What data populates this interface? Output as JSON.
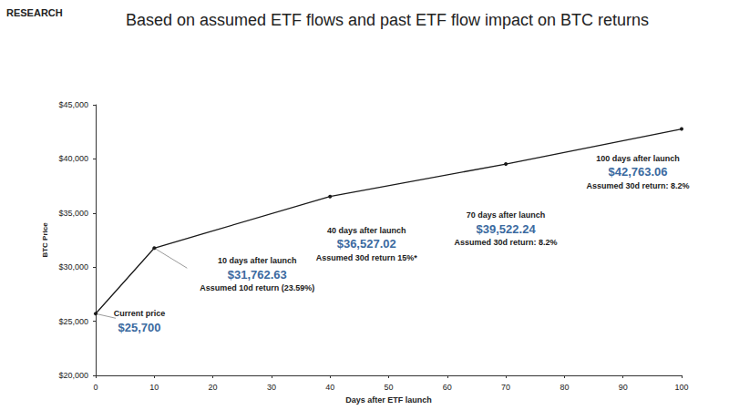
{
  "chart_data": {
    "type": "line",
    "title": "Based on assumed ETF flows and past ETF flow impact on BTC returns",
    "brand": "RESEARCH",
    "x_label": "Days after ETF launch",
    "y_label": "BTC Price",
    "x": [
      0,
      10,
      40,
      70,
      100
    ],
    "values": [
      25700,
      31762.63,
      36527.02,
      39522.24,
      42763.06
    ],
    "value_labels": [
      "$25,700",
      "$31,762.63",
      "$36,527.02",
      "$39,522.24",
      "$42,763.06"
    ],
    "annotations": [
      {
        "heading": "Current price",
        "note": null
      },
      {
        "heading": "10 days after launch",
        "note": "Assumed 10d return (23.59%)"
      },
      {
        "heading": "40 days after launch",
        "note": "Assumed 30d return 15%*"
      },
      {
        "heading": "70 days after launch",
        "note": "Assumed 30d return: 8.2%"
      },
      {
        "heading": "100 days after launch",
        "note": "Assumed 30d return: 8.2%"
      }
    ],
    "data_labels": true,
    "color": "#1a1a1a",
    "marker": "circle",
    "xlim": [
      0,
      100
    ],
    "xticks": [
      0,
      10,
      20,
      30,
      40,
      50,
      60,
      70,
      80,
      90,
      100
    ],
    "ylim": [
      20000,
      45000
    ],
    "yticks": [
      {
        "value": 20000,
        "label": "$20,000"
      },
      {
        "value": 25000,
        "label": "$25,000"
      },
      {
        "value": 30000,
        "label": "$30,000"
      },
      {
        "value": 35000,
        "label": "$35,000"
      },
      {
        "value": 40000,
        "label": "$40,000"
      },
      {
        "value": 45000,
        "label": "$45,000"
      }
    ],
    "grid": false
  }
}
